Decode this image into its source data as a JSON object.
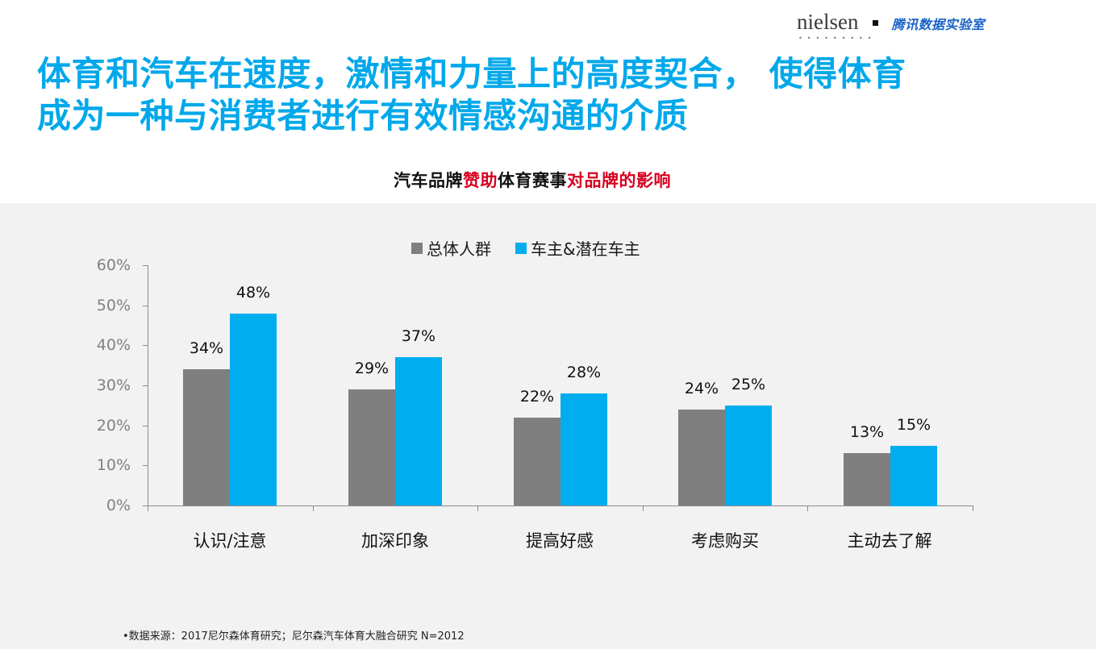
{
  "header": {
    "logo_left": "nielsen",
    "logo_dots": "•••••••••",
    "logo_right": "腾讯数据实验室"
  },
  "headline": {
    "line1": "体育和汽车在速度，激情和力量上的高度契合， 使得体育",
    "line2": "成为一种与消费者进行有效情感沟通的介质"
  },
  "subtitle": {
    "part1": "汽车品牌",
    "part2": "赞助",
    "part3": "体育赛事",
    "part4": "对品牌的影响"
  },
  "colors": {
    "headline": "#00a8ea",
    "accent_red": "#d7001f",
    "series_total": "#7f7f7f",
    "series_owner": "#00adef",
    "chart_bg": "#f2f2f2"
  },
  "chart_data": {
    "type": "bar",
    "title": "汽车品牌赞助体育赛事对品牌的影响",
    "xlabel": "",
    "ylabel": "",
    "ylim": [
      0,
      60
    ],
    "yticks": [
      "0%",
      "10%",
      "20%",
      "30%",
      "40%",
      "50%",
      "60%"
    ],
    "grid": false,
    "legend_position": "top",
    "categories": [
      "认识/注意",
      "加深印象",
      "提高好感",
      "考虑购买",
      "主动去了解"
    ],
    "series": [
      {
        "name": "总体人群",
        "color": "#7f7f7f",
        "values": [
          34,
          29,
          22,
          24,
          13
        ],
        "labels": [
          "34%",
          "29%",
          "22%",
          "24%",
          "13%"
        ]
      },
      {
        "name": "车主&潜在车主",
        "color": "#00adef",
        "values": [
          48,
          37,
          28,
          25,
          15
        ],
        "labels": [
          "48%",
          "37%",
          "28%",
          "25%",
          "15%"
        ]
      }
    ]
  },
  "footer": {
    "source": "•数据来源：2017尼尔森体育研究；尼尔森汽车体育大融合研究 N=2012"
  }
}
